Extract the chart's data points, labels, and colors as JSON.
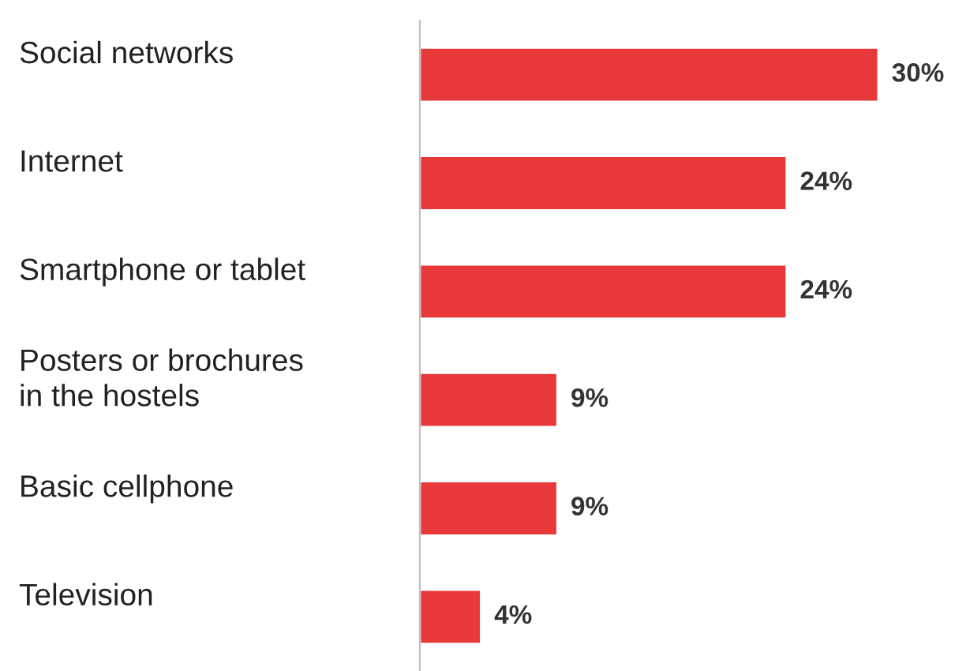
{
  "chart_data": {
    "type": "bar",
    "orientation": "horizontal",
    "categories": [
      "Social networks",
      "Internet",
      "Smartphone or tablet",
      "Posters or brochures\nin the hostels",
      "Basic cellphone",
      "Television"
    ],
    "values": [
      30,
      24,
      24,
      9,
      9,
      4
    ],
    "value_labels": [
      "30%",
      "24%",
      "24%",
      "9%",
      "9%",
      "4%"
    ],
    "color": "#e8393a"
  }
}
